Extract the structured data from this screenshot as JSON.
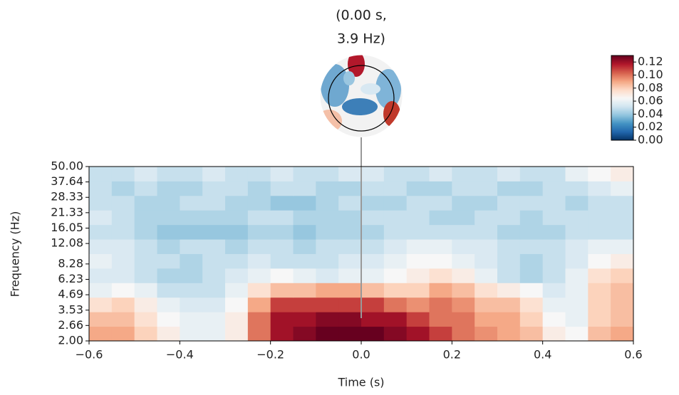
{
  "chart_data": {
    "type": "heatmap",
    "title_lines": [
      "(0.00 s,",
      "3.9 Hz)"
    ],
    "xlabel": "Time (s)",
    "ylabel": "Frequency (Hz)",
    "colormap": "RdBu_r",
    "clim": [
      0,
      0.13
    ],
    "x": [
      -0.575,
      -0.525,
      -0.475,
      -0.425,
      -0.375,
      -0.325,
      -0.275,
      -0.225,
      -0.175,
      -0.125,
      -0.075,
      -0.025,
      0.025,
      0.075,
      0.125,
      0.175,
      0.225,
      0.275,
      0.325,
      0.375,
      0.425,
      0.475,
      0.525,
      0.575
    ],
    "y": [
      2.29,
      2.99,
      3.91,
      5.12,
      6.69,
      8.75,
      11.44,
      14.96,
      19.57,
      25.59,
      33.46,
      43.76
    ],
    "values": [
      [
        0.09,
        0.09,
        0.08,
        0.07,
        0.06,
        0.06,
        0.07,
        0.1,
        0.12,
        0.125,
        0.13,
        0.13,
        0.13,
        0.125,
        0.12,
        0.11,
        0.1,
        0.095,
        0.09,
        0.085,
        0.07,
        0.065,
        0.085,
        0.09
      ],
      [
        0.085,
        0.085,
        0.075,
        0.065,
        0.06,
        0.06,
        0.07,
        0.1,
        0.12,
        0.12,
        0.125,
        0.125,
        0.12,
        0.12,
        0.11,
        0.1,
        0.1,
        0.09,
        0.09,
        0.08,
        0.065,
        0.06,
        0.08,
        0.085
      ],
      [
        0.075,
        0.08,
        0.07,
        0.06,
        0.055,
        0.055,
        0.065,
        0.09,
        0.11,
        0.11,
        0.11,
        0.11,
        0.11,
        0.1,
        0.095,
        0.1,
        0.095,
        0.085,
        0.085,
        0.075,
        0.06,
        0.06,
        0.08,
        0.085
      ],
      [
        0.06,
        0.065,
        0.06,
        0.05,
        0.05,
        0.05,
        0.06,
        0.075,
        0.085,
        0.085,
        0.09,
        0.09,
        0.085,
        0.08,
        0.08,
        0.09,
        0.085,
        0.075,
        0.07,
        0.065,
        0.055,
        0.06,
        0.08,
        0.085
      ],
      [
        0.055,
        0.055,
        0.05,
        0.045,
        0.045,
        0.05,
        0.055,
        0.06,
        0.065,
        0.06,
        0.055,
        0.06,
        0.06,
        0.065,
        0.07,
        0.075,
        0.07,
        0.06,
        0.05,
        0.045,
        0.05,
        0.06,
        0.075,
        0.08
      ],
      [
        0.06,
        0.055,
        0.05,
        0.05,
        0.045,
        0.05,
        0.05,
        0.055,
        0.05,
        0.05,
        0.05,
        0.055,
        0.055,
        0.06,
        0.065,
        0.065,
        0.06,
        0.055,
        0.05,
        0.045,
        0.05,
        0.055,
        0.065,
        0.07
      ],
      [
        0.055,
        0.055,
        0.05,
        0.045,
        0.05,
        0.05,
        0.045,
        0.05,
        0.05,
        0.045,
        0.05,
        0.05,
        0.05,
        0.055,
        0.06,
        0.06,
        0.055,
        0.055,
        0.05,
        0.05,
        0.05,
        0.055,
        0.06,
        0.06
      ],
      [
        0.05,
        0.05,
        0.045,
        0.04,
        0.04,
        0.04,
        0.04,
        0.045,
        0.045,
        0.04,
        0.045,
        0.045,
        0.045,
        0.05,
        0.05,
        0.05,
        0.05,
        0.05,
        0.045,
        0.045,
        0.045,
        0.05,
        0.05,
        0.05
      ],
      [
        0.055,
        0.05,
        0.045,
        0.045,
        0.045,
        0.045,
        0.045,
        0.05,
        0.05,
        0.045,
        0.045,
        0.045,
        0.05,
        0.05,
        0.05,
        0.045,
        0.045,
        0.05,
        0.05,
        0.045,
        0.05,
        0.05,
        0.05,
        0.05
      ],
      [
        0.05,
        0.05,
        0.045,
        0.045,
        0.05,
        0.05,
        0.045,
        0.045,
        0.04,
        0.04,
        0.045,
        0.05,
        0.045,
        0.045,
        0.05,
        0.05,
        0.045,
        0.045,
        0.05,
        0.05,
        0.05,
        0.045,
        0.05,
        0.05
      ],
      [
        0.05,
        0.045,
        0.05,
        0.045,
        0.045,
        0.05,
        0.05,
        0.045,
        0.05,
        0.05,
        0.045,
        0.045,
        0.05,
        0.05,
        0.045,
        0.045,
        0.05,
        0.05,
        0.045,
        0.045,
        0.05,
        0.05,
        0.055,
        0.06
      ],
      [
        0.05,
        0.05,
        0.055,
        0.05,
        0.05,
        0.055,
        0.05,
        0.05,
        0.055,
        0.05,
        0.05,
        0.055,
        0.055,
        0.05,
        0.05,
        0.055,
        0.05,
        0.05,
        0.055,
        0.05,
        0.05,
        0.06,
        0.065,
        0.07
      ]
    ],
    "xlim": [
      -0.6,
      0.6
    ],
    "xticks": [
      {
        "value": -0.6,
        "label": "−0.6"
      },
      {
        "value": -0.4,
        "label": "−0.4"
      },
      {
        "value": -0.2,
        "label": "−0.2"
      },
      {
        "value": 0,
        "label": "0.0"
      },
      {
        "value": 0.2,
        "label": "0.2"
      },
      {
        "value": 0.4,
        "label": "0.4"
      },
      {
        "value": 0.6,
        "label": "0.6"
      }
    ],
    "ylog": true,
    "ylim": [
      2,
      50
    ],
    "yticks": [
      {
        "value": 2,
        "label": "2.00"
      },
      {
        "value": 2.66,
        "label": "2.66"
      },
      {
        "value": 3.53,
        "label": "3.53"
      },
      {
        "value": 4.69,
        "label": "4.69"
      },
      {
        "value": 6.23,
        "label": "6.23"
      },
      {
        "value": 8.28,
        "label": "8.28"
      },
      {
        "value": 12.08,
        "label": "12.08"
      },
      {
        "value": 16.05,
        "label": "16.05"
      },
      {
        "value": 21.33,
        "label": "21.33"
      },
      {
        "value": 28.33,
        "label": "28.33"
      },
      {
        "value": 37.64,
        "label": "37.64"
      },
      {
        "value": 50,
        "label": "50.00"
      }
    ],
    "cticks": [
      {
        "value": 0,
        "label": "0.00"
      },
      {
        "value": 0.02,
        "label": "0.02"
      },
      {
        "value": 0.04,
        "label": "0.04"
      },
      {
        "value": 0.06,
        "label": "0.06"
      },
      {
        "value": 0.08,
        "label": "0.08"
      },
      {
        "value": 0.1,
        "label": "0.10"
      },
      {
        "value": 0.12,
        "label": "0.12"
      }
    ]
  }
}
